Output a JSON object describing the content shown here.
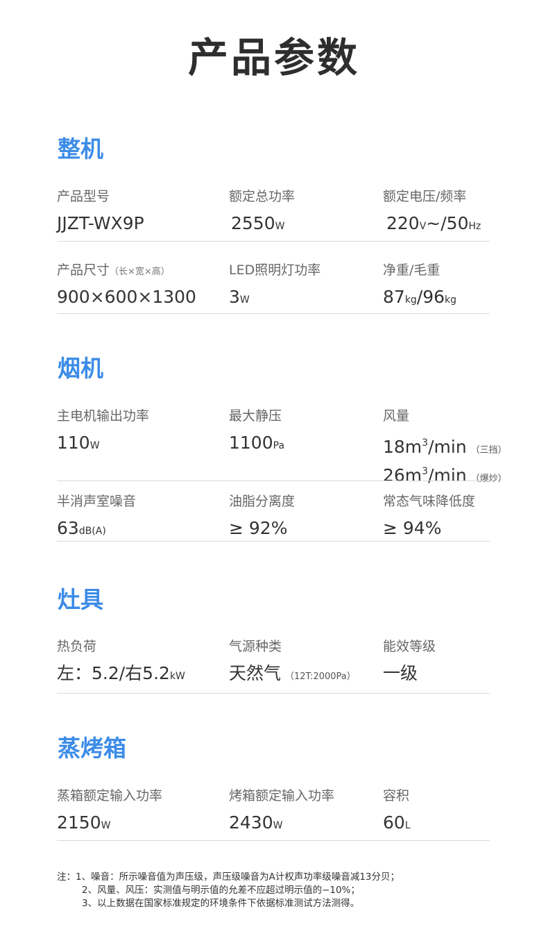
{
  "title": "产品参数",
  "sections": [
    {
      "title": "整机",
      "rows": [
        [
          {
            "label": "产品型号",
            "value": [
              {
                "t": "JJZT-WX9P"
              }
            ]
          },
          {
            "label": "额定总功率",
            "value": [
              {
                "t": "2550"
              },
              {
                "t": "W",
                "c": "s"
              }
            ]
          },
          {
            "label": "额定电压/频率",
            "value": [
              {
                "t": "220"
              },
              {
                "t": "V",
                "c": "s"
              },
              {
                "t": "~/50"
              },
              {
                "t": "Hz",
                "c": "s"
              }
            ]
          }
        ],
        [
          {
            "label": "产品尺寸",
            "label_note": "（长×宽×高）",
            "value": [
              {
                "t": "900×600×1300"
              }
            ]
          },
          {
            "label": "LED照明灯功率",
            "value": [
              {
                "t": "3"
              },
              {
                "t": "W",
                "c": "s"
              }
            ]
          },
          {
            "label": "净重/毛重",
            "value": [
              {
                "t": "87"
              },
              {
                "t": "kg",
                "c": "s"
              },
              {
                "t": "/96"
              },
              {
                "t": "kg",
                "c": "s"
              }
            ]
          }
        ]
      ]
    },
    {
      "title": "烟机",
      "rows": [
        [
          {
            "label": "主电机输出功率",
            "value": [
              {
                "t": "110"
              },
              {
                "t": "W",
                "c": "s"
              }
            ]
          },
          {
            "label": "最大静压",
            "value": [
              {
                "t": "1100"
              },
              {
                "t": "Pa",
                "c": "s"
              }
            ]
          },
          {
            "label": "风量",
            "value": [
              {
                "t": "18m"
              },
              {
                "t": "3",
                "c": "sup"
              },
              {
                "t": "/min"
              },
              {
                "t": "（三挡）",
                "c": "n"
              },
              {
                "br": true
              },
              {
                "t": "26m"
              },
              {
                "t": "3",
                "c": "sup"
              },
              {
                "t": "/min"
              },
              {
                "t": "（爆炒）",
                "c": "n"
              }
            ]
          }
        ],
        [
          {
            "label": "半消声室噪音",
            "value": [
              {
                "t": "63"
              },
              {
                "t": "dB(A)",
                "c": "s"
              }
            ]
          },
          {
            "label": "油脂分离度",
            "value": [
              {
                "t": "≥ 92%"
              }
            ]
          },
          {
            "label": "常态气味降低度",
            "value": [
              {
                "t": "≥ 94%"
              }
            ]
          }
        ]
      ]
    },
    {
      "title": "灶具",
      "rows": [
        [
          {
            "label": "热负荷",
            "value": [
              {
                "t": "左：5.2/右5.2"
              },
              {
                "t": "kW",
                "c": "s"
              }
            ]
          },
          {
            "label": "气源种类",
            "value": [
              {
                "t": "天然气"
              },
              {
                "t": "（12T:2000Pa）",
                "c": "n"
              }
            ]
          },
          {
            "label": "能效等级",
            "value": [
              {
                "t": "一级"
              }
            ]
          }
        ]
      ]
    },
    {
      "title": "蒸烤箱",
      "rows": [
        [
          {
            "label": "蒸箱额定输入功率",
            "value": [
              {
                "t": "2150"
              },
              {
                "t": "W",
                "c": "s"
              }
            ]
          },
          {
            "label": "烤箱额定输入功率",
            "value": [
              {
                "t": "2430"
              },
              {
                "t": "W",
                "c": "s"
              }
            ]
          },
          {
            "label": "容积",
            "value": [
              {
                "t": "60"
              },
              {
                "t": "L",
                "c": "s"
              }
            ]
          }
        ]
      ]
    }
  ],
  "notes": [
    "注：1、噪音：所示噪音值为声压级，声压级噪音为A计权声功率级噪音减13分贝；",
    "2、风量、风压：实测值与明示值的允差不应超过明示值的−10%；",
    "3、以上数据在国家标准规定的环境条件下依据标准测试方法测得。"
  ]
}
